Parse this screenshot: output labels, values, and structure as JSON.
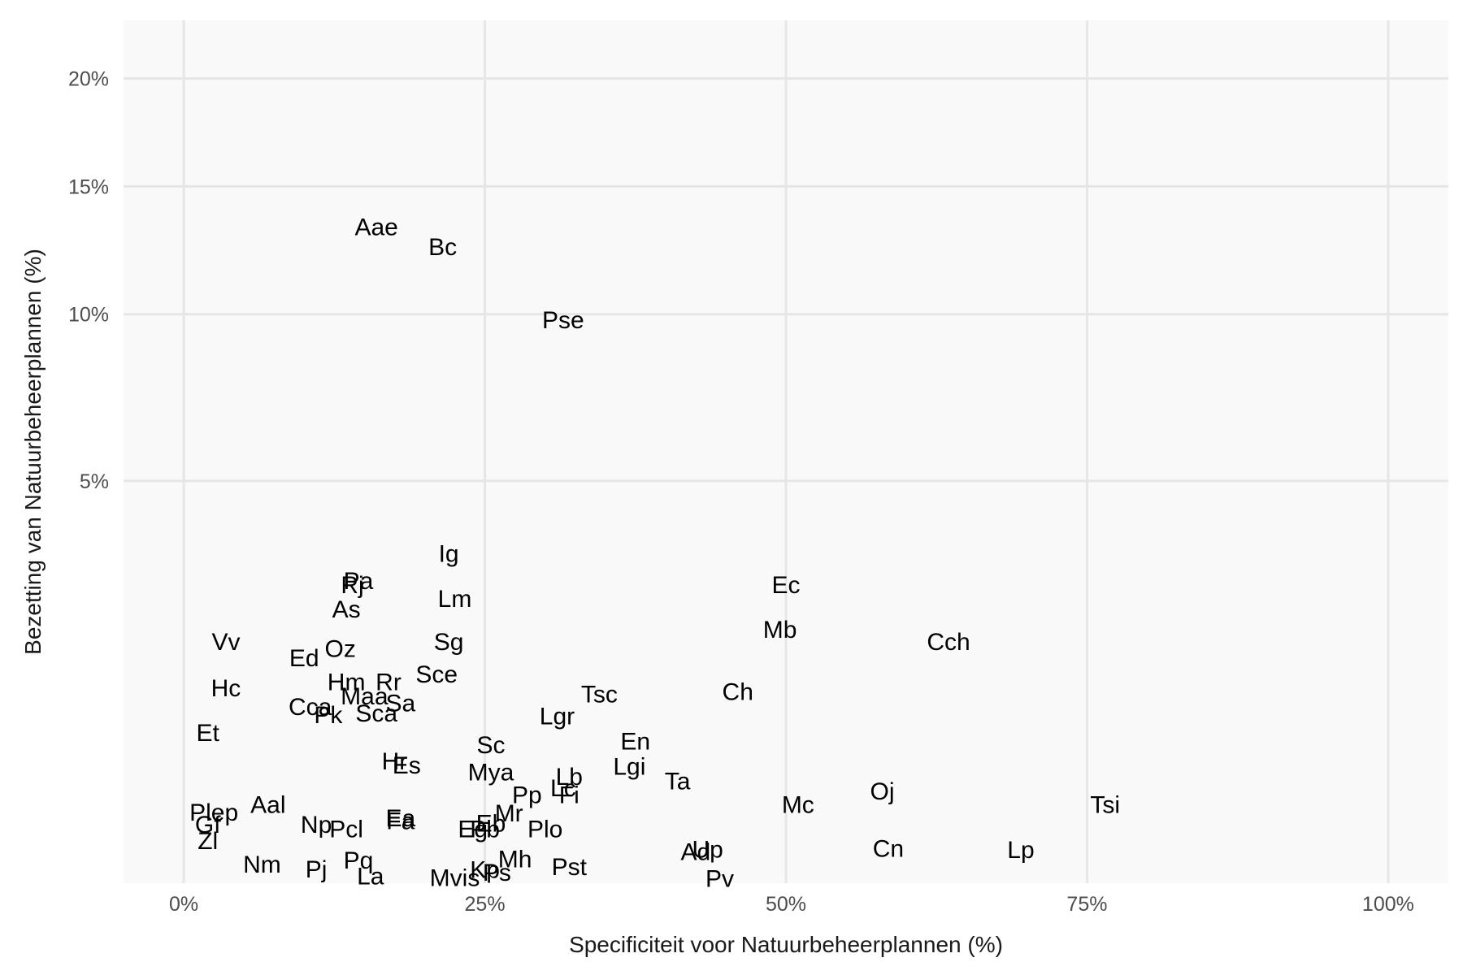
{
  "chart_data": {
    "type": "scatter",
    "mark": "text",
    "xlabel": "Specificiteit voor Natuurbeheerplannen (%)",
    "ylabel": "Bezetting van Natuurbeheerplannen (%)",
    "xlim": [
      -5,
      105
    ],
    "y_scale": "sqrt",
    "ylim": [
      0,
      23
    ],
    "x_ticks": [
      0,
      25,
      50,
      75,
      100
    ],
    "x_tick_labels": [
      "0%",
      "25%",
      "50%",
      "75%",
      "100%"
    ],
    "y_ticks": [
      5,
      10,
      15,
      20
    ],
    "y_tick_labels": [
      "5%",
      "10%",
      "15%",
      "20%"
    ],
    "grid": true,
    "colors": {
      "panel_background": "#f9f9f9",
      "grid": "#e6e6e6",
      "text": "#000000",
      "tick_text": "#4d4d4d"
    },
    "points": [
      {
        "label": "Aae",
        "x": 16.0,
        "y": 13.3
      },
      {
        "label": "Bc",
        "x": 21.5,
        "y": 12.5
      },
      {
        "label": "Pse",
        "x": 31.5,
        "y": 9.8
      },
      {
        "label": "Ig",
        "x": 22.0,
        "y": 3.35
      },
      {
        "label": "Rj",
        "x": 14.0,
        "y": 2.75
      },
      {
        "label": "Vv",
        "x": 3.5,
        "y": 1.8
      },
      {
        "label": "Oz",
        "x": 13.0,
        "y": 1.7
      },
      {
        "label": "Sg",
        "x": 22.0,
        "y": 1.8
      },
      {
        "label": "Hm",
        "x": 13.5,
        "y": 1.25
      },
      {
        "label": "Rr",
        "x": 17.0,
        "y": 1.25
      },
      {
        "label": "Maa",
        "x": 15.0,
        "y": 1.08
      },
      {
        "label": "Sa",
        "x": 18.0,
        "y": 1.0
      },
      {
        "label": "Tsc",
        "x": 34.5,
        "y": 1.1
      },
      {
        "label": "Ch",
        "x": 46.0,
        "y": 1.13
      },
      {
        "label": "Lgr",
        "x": 31.0,
        "y": 0.86
      },
      {
        "label": "En",
        "x": 37.5,
        "y": 0.62
      },
      {
        "label": "Sc",
        "x": 25.5,
        "y": 0.59
      },
      {
        "label": "Hr",
        "x": 17.5,
        "y": 0.46
      },
      {
        "label": "Es",
        "x": 18.5,
        "y": 0.43
      },
      {
        "label": "Mya",
        "x": 25.5,
        "y": 0.38
      },
      {
        "label": "Lgi",
        "x": 37.0,
        "y": 0.42
      },
      {
        "label": "Lb",
        "x": 32.0,
        "y": 0.35
      },
      {
        "label": "Ta",
        "x": 41.0,
        "y": 0.32
      },
      {
        "label": "Lc",
        "x": 31.5,
        "y": 0.28
      },
      {
        "label": "Fi",
        "x": 32.0,
        "y": 0.24
      },
      {
        "label": "Pp",
        "x": 28.5,
        "y": 0.24
      },
      {
        "label": "Oj",
        "x": 58.0,
        "y": 0.26
      },
      {
        "label": "Tsi",
        "x": 76.5,
        "y": 0.19
      },
      {
        "label": "Mc",
        "x": 51.0,
        "y": 0.19
      },
      {
        "label": "Aal",
        "x": 7.0,
        "y": 0.19
      },
      {
        "label": "Mr",
        "x": 27.0,
        "y": 0.15
      },
      {
        "label": "Ea",
        "x": 18.0,
        "y": 0.13
      },
      {
        "label": "Fa",
        "x": 18.0,
        "y": 0.12
      },
      {
        "label": "Eb",
        "x": 25.5,
        "y": 0.11
      },
      {
        "label": "Eg",
        "x": 24.0,
        "y": 0.09
      },
      {
        "label": "Pb",
        "x": 25.0,
        "y": 0.09
      },
      {
        "label": "Plo",
        "x": 30.0,
        "y": 0.09
      },
      {
        "label": "Pcl",
        "x": 13.5,
        "y": 0.09
      },
      {
        "label": "Up",
        "x": 43.5,
        "y": 0.035
      },
      {
        "label": "Ad",
        "x": 42.5,
        "y": 0.03
      },
      {
        "label": "Cn",
        "x": 58.5,
        "y": 0.037
      },
      {
        "label": "Lp",
        "x": 69.5,
        "y": 0.034
      },
      {
        "label": "Mh",
        "x": 27.5,
        "y": 0.018
      },
      {
        "label": "Pq",
        "x": 14.5,
        "y": 0.016
      },
      {
        "label": "Nm",
        "x": 6.5,
        "y": 0.011
      },
      {
        "label": "Pst",
        "x": 32.0,
        "y": 0.008
      },
      {
        "label": "Pj",
        "x": 11.0,
        "y": 0.006
      },
      {
        "label": "Kp",
        "x": 25.0,
        "y": 0.0055
      },
      {
        "label": "Ps",
        "x": 26.0,
        "y": 0.0035
      },
      {
        "label": "La",
        "x": 15.5,
        "y": 0.0015
      },
      {
        "label": "Mvis",
        "x": 22.5,
        "y": 0.0008
      },
      {
        "label": "Pv",
        "x": 44.5,
        "y": 0.0006
      }
    ],
    "points_low": [
      {
        "label": "Pa",
        "x": 14.5,
        "y": 0.0
      },
      {
        "label": "Ec",
        "x": 50.0,
        "y": 0.0
      },
      {
        "label": "Lm",
        "x": 22.5,
        "y": 0.0
      },
      {
        "label": "As",
        "x": 13.5,
        "y": 0.0
      },
      {
        "label": "Mb",
        "x": 49.5,
        "y": 0.0
      },
      {
        "label": "Cch",
        "x": 63.5,
        "y": 0.0
      },
      {
        "label": "Ed",
        "x": 10.0,
        "y": 0.0
      },
      {
        "label": "Sce",
        "x": 21.0,
        "y": 0.0
      },
      {
        "label": "Hc",
        "x": 3.5,
        "y": 0.0
      },
      {
        "label": "Cca",
        "x": 10.5,
        "y": 0.0
      },
      {
        "label": "Pk",
        "x": 12.0,
        "y": 0.0
      },
      {
        "label": "Sca",
        "x": 16.0,
        "y": 0.0
      },
      {
        "label": "Et",
        "x": 2.0,
        "y": 0.0
      },
      {
        "label": "Plep",
        "x": 2.5,
        "y": 0.0
      },
      {
        "label": "Gf",
        "x": 2.0,
        "y": 0.0
      },
      {
        "label": "Zl",
        "x": 2.0,
        "y": 0.0
      },
      {
        "label": "Np",
        "x": 11.0,
        "y": 0.0
      }
    ]
  }
}
